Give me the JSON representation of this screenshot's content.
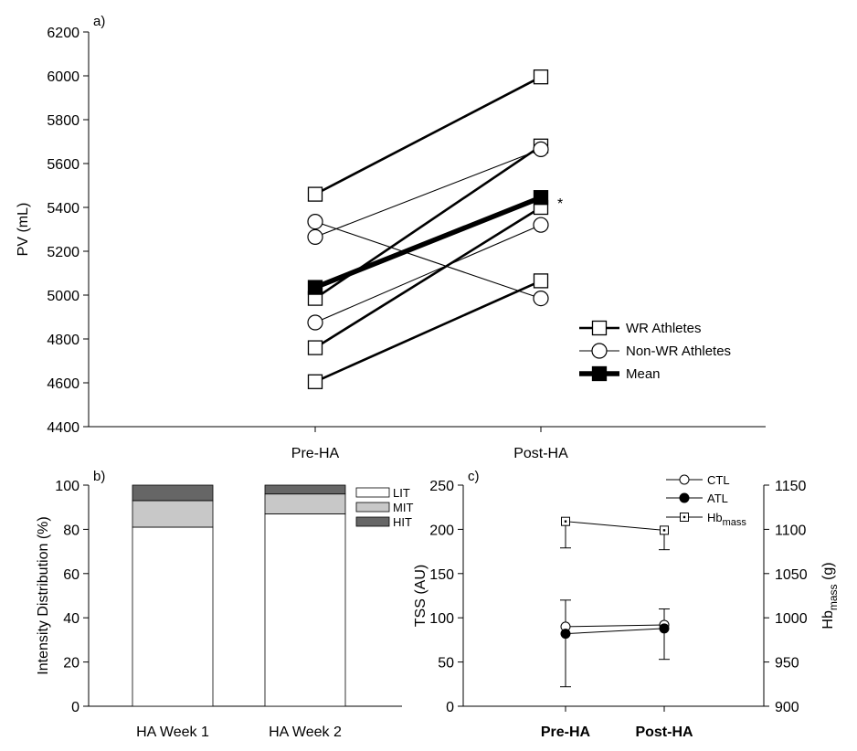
{
  "chart_data": [
    {
      "panel_label": "a)",
      "type": "line",
      "ylabel": "PV (mL)",
      "ylim": [
        4400,
        6200
      ],
      "yticks": [
        4400,
        4600,
        4800,
        5000,
        5200,
        5400,
        5600,
        5800,
        6000,
        6200
      ],
      "categories": [
        "Pre-HA",
        "Post-HA"
      ],
      "annotation": "*",
      "legend": [
        "WR Athletes",
        "Non-WR Athletes",
        "Mean"
      ],
      "legend_position": "bottom-right",
      "series": [
        {
          "group": "WR Athletes",
          "values": [
            5460,
            5995
          ]
        },
        {
          "group": "WR Athletes",
          "values": [
            4985,
            5680
          ]
        },
        {
          "group": "WR Athletes",
          "values": [
            4760,
            5400
          ]
        },
        {
          "group": "WR Athletes",
          "values": [
            4605,
            5065
          ]
        },
        {
          "group": "Non-WR Athletes",
          "values": [
            5335,
            4985
          ]
        },
        {
          "group": "Non-WR Athletes",
          "values": [
            5265,
            5665
          ]
        },
        {
          "group": "Non-WR Athletes",
          "values": [
            4875,
            5320
          ]
        },
        {
          "group": "Mean",
          "values": [
            5035,
            5445
          ]
        }
      ]
    },
    {
      "panel_label": "b)",
      "type": "bar",
      "stacked": true,
      "ylabel": "Intensity Distribution (%)",
      "ylim": [
        0,
        100
      ],
      "yticks": [
        0,
        20,
        40,
        60,
        80,
        100
      ],
      "categories": [
        "HA Week 1",
        "HA Week 2"
      ],
      "legend_position": "top-right",
      "series": [
        {
          "name": "LIT",
          "color": "#ffffff",
          "values": [
            81,
            87
          ]
        },
        {
          "name": "MIT",
          "color": "#c8c8c8",
          "values": [
            12,
            9
          ]
        },
        {
          "name": "HIT",
          "color": "#666666",
          "values": [
            7,
            4
          ]
        }
      ]
    },
    {
      "panel_label": "c)",
      "type": "line",
      "ylabel": "TSS (AU)",
      "ylim": [
        0,
        250
      ],
      "yticks": [
        0,
        50,
        100,
        150,
        200,
        250
      ],
      "y2label": "Hb",
      "y2label_sub": "mass",
      "y2label_suffix": " (g)",
      "y2lim": [
        900,
        1150
      ],
      "y2ticks": [
        900,
        950,
        1000,
        1050,
        1100,
        1150
      ],
      "categories": [
        "Pre-HA",
        "Post-HA"
      ],
      "legend_position": "top-right",
      "series": [
        {
          "name": "CTL",
          "marker": "open-circle",
          "axis": "left",
          "values": [
            90,
            92
          ],
          "err_upper": [
            120,
            110
          ],
          "err_lower": [
            null,
            null
          ]
        },
        {
          "name": "ATL",
          "marker": "filled-circle",
          "axis": "left",
          "values": [
            82,
            88
          ],
          "err_upper": [
            null,
            null
          ],
          "err_lower": [
            22,
            53
          ]
        },
        {
          "name": "Hb",
          "name_sub": "mass",
          "marker": "open-square-dot",
          "axis": "right",
          "values": [
            1109,
            1099
          ],
          "err_upper": [
            null,
            null
          ],
          "err_lower": [
            1079,
            1077
          ]
        }
      ]
    }
  ]
}
